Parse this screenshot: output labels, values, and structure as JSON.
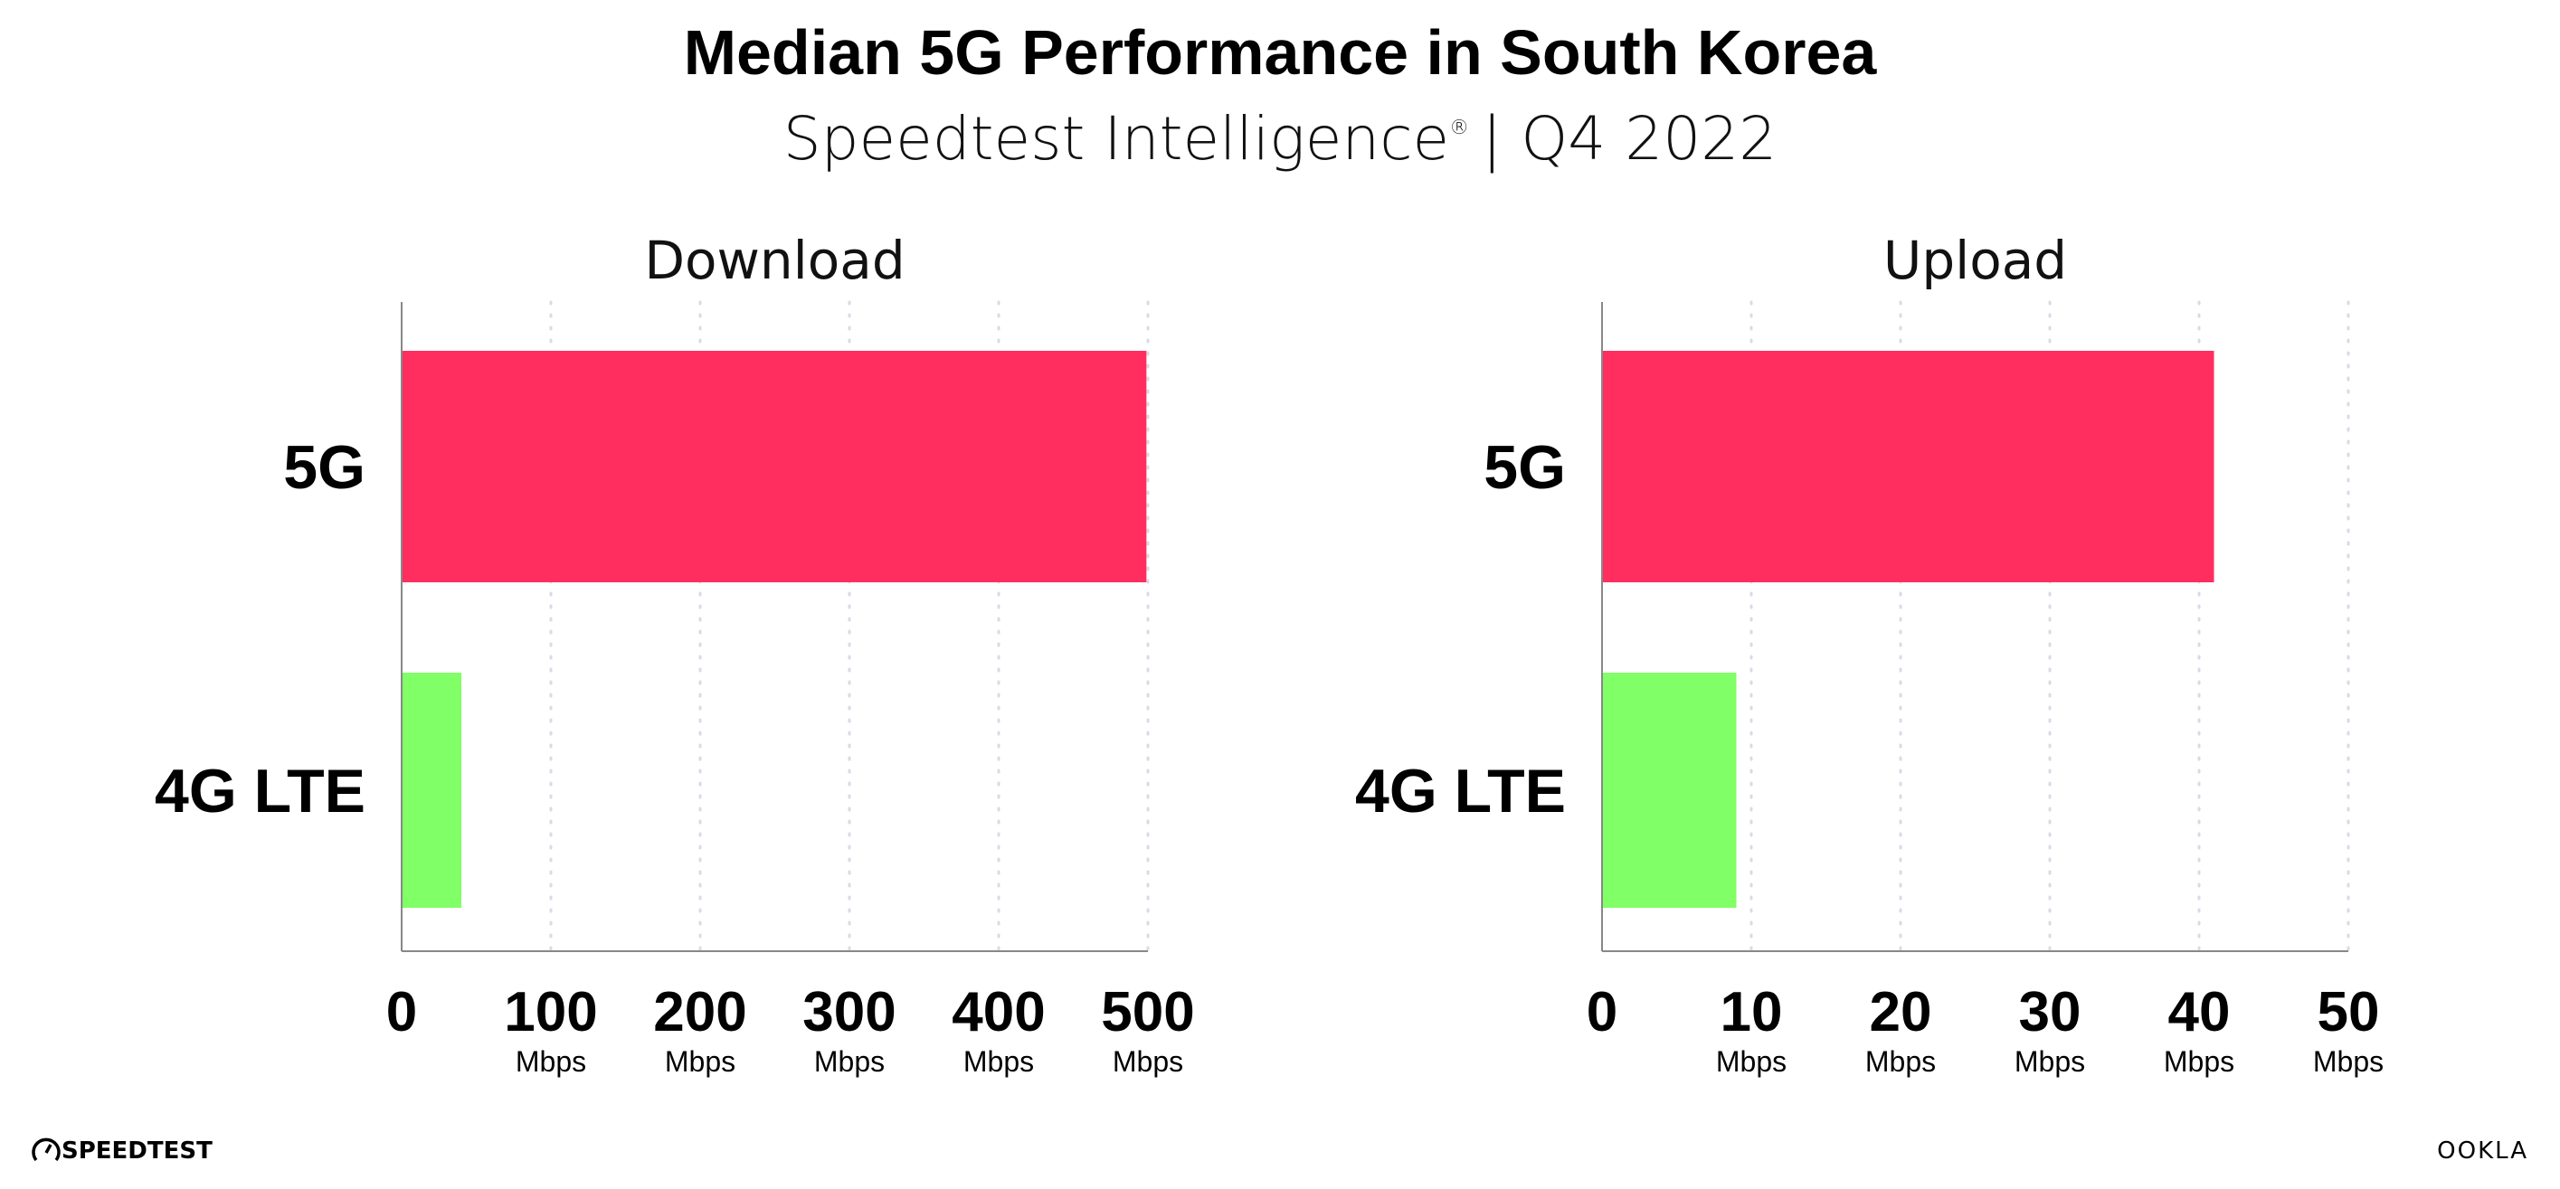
{
  "header": {
    "title": "Median 5G Performance in South Korea",
    "subtitle_source": "Speedtest Intelligence",
    "subtitle_mark": "®",
    "subtitle_period": "| Q4 2022"
  },
  "colors": {
    "5G": "#ff2e5e",
    "4G LTE": "#80ff66",
    "axis": "#888888",
    "grid": "#d8dbe6"
  },
  "chart_data": [
    {
      "type": "bar",
      "orientation": "horizontal",
      "title": "Download",
      "categories": [
        "5G",
        "4G LTE"
      ],
      "values": [
        499,
        40
      ],
      "xlim": [
        0,
        500
      ],
      "ticks": [
        "0",
        "100",
        "200",
        "300",
        "400",
        "500"
      ],
      "tick_values": [
        0,
        100,
        200,
        300,
        400,
        500
      ],
      "tick_unit": "Mbps",
      "grid": true
    },
    {
      "type": "bar",
      "orientation": "horizontal",
      "title": "Upload",
      "categories": [
        "5G",
        "4G LTE"
      ],
      "values": [
        41,
        9
      ],
      "xlim": [
        0,
        50
      ],
      "ticks": [
        "0",
        "10",
        "20",
        "30",
        "40",
        "50"
      ],
      "tick_values": [
        0,
        10,
        20,
        30,
        40,
        50
      ],
      "tick_unit": "Mbps",
      "grid": true
    }
  ],
  "footer": {
    "left_logo": "SPEEDTEST",
    "right_logo": "OOKLA"
  }
}
